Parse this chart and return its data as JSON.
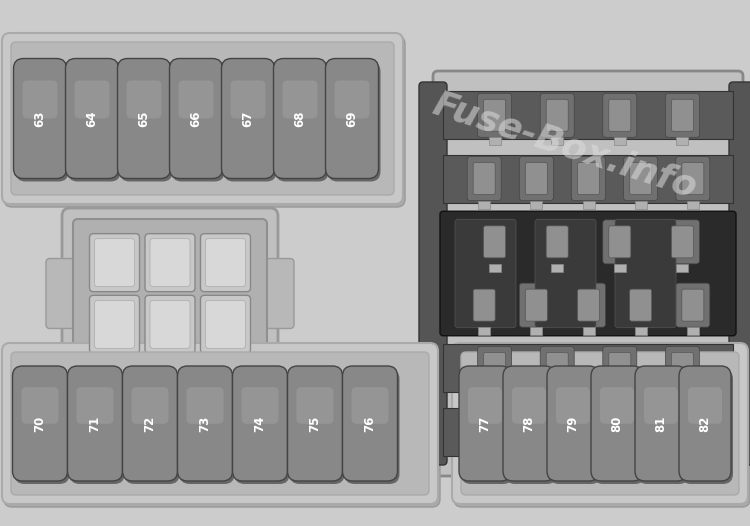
{
  "bg_color": "#c9c9c9",
  "bg_color2": "#d4d4d4",
  "fuse_body_color": "#888888",
  "fuse_shadow_color": "#555555",
  "fuse_highlight": "#aaaaaa",
  "fuse_text_color": "#ffffff",
  "panel_outer_color": "#c0c0c0",
  "panel_inner_color": "#b8b8b8",
  "panel_border_color": "#999999",
  "watermark_text": "Fuse-Box.info",
  "watermark_color": "#dddddd",
  "watermark_alpha": 0.55,
  "top_fuses": [
    "63",
    "64",
    "65",
    "66",
    "67",
    "68",
    "69"
  ],
  "bottom_left_fuses": [
    "70",
    "71",
    "72",
    "73",
    "74",
    "75",
    "76"
  ],
  "bottom_right_fuses": [
    "77",
    "78",
    "79",
    "80",
    "81",
    "82"
  ],
  "right_block_dark": "#4a4a4a",
  "right_block_mid": "#6a6a6a",
  "right_block_light": "#888888",
  "connector_color": "#5a5a5a",
  "pin_color": "#aaaaaa"
}
